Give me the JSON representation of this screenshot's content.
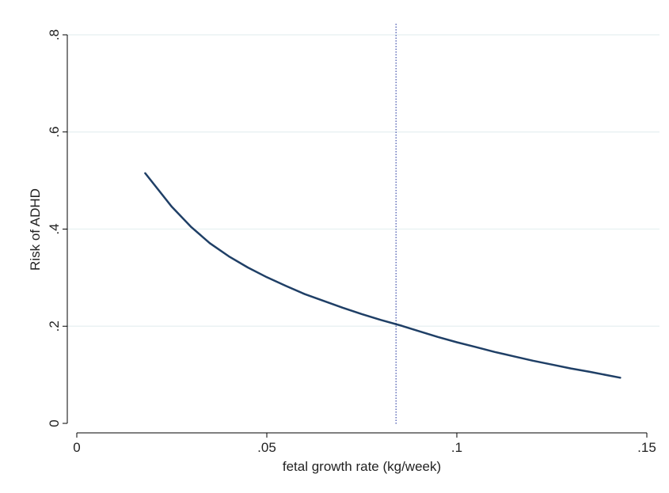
{
  "chart_data": {
    "type": "line",
    "title": "",
    "xlabel": "fetal growth rate (kg/week)",
    "ylabel": "Risk of ADHD",
    "xlim": [
      0,
      0.15
    ],
    "ylim": [
      0,
      0.8
    ],
    "x_ticks": [
      {
        "value": 0,
        "label": "0"
      },
      {
        "value": 0.05,
        "label": ".05"
      },
      {
        "value": 0.1,
        "label": ".1"
      },
      {
        "value": 0.15,
        "label": ".15"
      }
    ],
    "y_ticks": [
      {
        "value": 0,
        "label": "0"
      },
      {
        "value": 0.2,
        "label": ".2"
      },
      {
        "value": 0.4,
        "label": ".4"
      },
      {
        "value": 0.6,
        "label": ".6"
      },
      {
        "value": 0.8,
        "label": ".8"
      }
    ],
    "grid": "horizontal",
    "legend": "none",
    "reference_line": {
      "axis": "x",
      "value": 0.084,
      "style": "dotted",
      "color": "#3b4ba8"
    },
    "series": [
      {
        "color": "#1f3f66",
        "x": [
          0.018,
          0.025,
          0.03,
          0.035,
          0.04,
          0.045,
          0.05,
          0.055,
          0.06,
          0.065,
          0.07,
          0.075,
          0.08,
          0.085,
          0.09,
          0.095,
          0.1,
          0.105,
          0.11,
          0.115,
          0.12,
          0.125,
          0.13,
          0.135,
          0.143
        ],
        "y": [
          0.515,
          0.446,
          0.405,
          0.371,
          0.344,
          0.321,
          0.301,
          0.283,
          0.266,
          0.252,
          0.238,
          0.225,
          0.213,
          0.202,
          0.19,
          0.178,
          0.167,
          0.157,
          0.147,
          0.138,
          0.129,
          0.121,
          0.113,
          0.106,
          0.094
        ]
      }
    ]
  }
}
